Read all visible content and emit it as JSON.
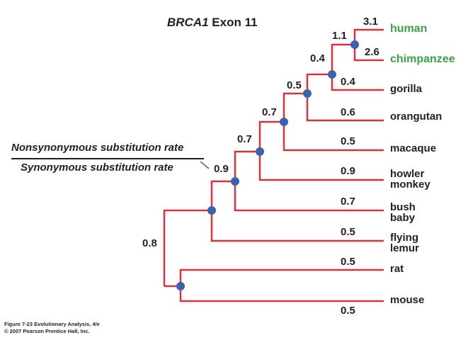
{
  "title": {
    "gene": "BRCA1",
    "rest": " Exon 11"
  },
  "ratio": {
    "numerator": "Nonsynonymous substitution rate",
    "denominator": "Synonymous substitution rate"
  },
  "taxa": [
    {
      "name": "human",
      "line2": "",
      "branch_value": "3.1",
      "highlight": true
    },
    {
      "name": "chimpanzee",
      "line2": "",
      "branch_value": "2.6",
      "highlight": true
    },
    {
      "name": "gorilla",
      "line2": "",
      "branch_value": "0.4",
      "highlight": false
    },
    {
      "name": "orangutan",
      "line2": "",
      "branch_value": "0.6",
      "highlight": false
    },
    {
      "name": "macaque",
      "line2": "",
      "branch_value": "0.5",
      "highlight": false
    },
    {
      "name": "howler",
      "line2": "monkey",
      "branch_value": "0.9",
      "highlight": false
    },
    {
      "name": "bush",
      "line2": "baby",
      "branch_value": "0.7",
      "highlight": false
    },
    {
      "name": "flying",
      "line2": "lemur",
      "branch_value": "0.5",
      "highlight": false
    },
    {
      "name": "rat",
      "line2": "",
      "branch_value": "0.5",
      "highlight": false
    },
    {
      "name": "mouse",
      "line2": "",
      "branch_value": "0.5",
      "highlight": false
    }
  ],
  "internal_values": [
    "1.1",
    "0.4",
    "0.5",
    "0.7",
    "0.7",
    "0.9",
    "0.8"
  ],
  "colors": {
    "branch": "#d9323a",
    "node": "#3b62ad",
    "highlight": "#3aa14a"
  },
  "caption": {
    "line1": "Figure 7-23  Evolutionary Analysis, 4/e",
    "line2": "© 2007 Pearson Prentice Hall, Inc."
  }
}
